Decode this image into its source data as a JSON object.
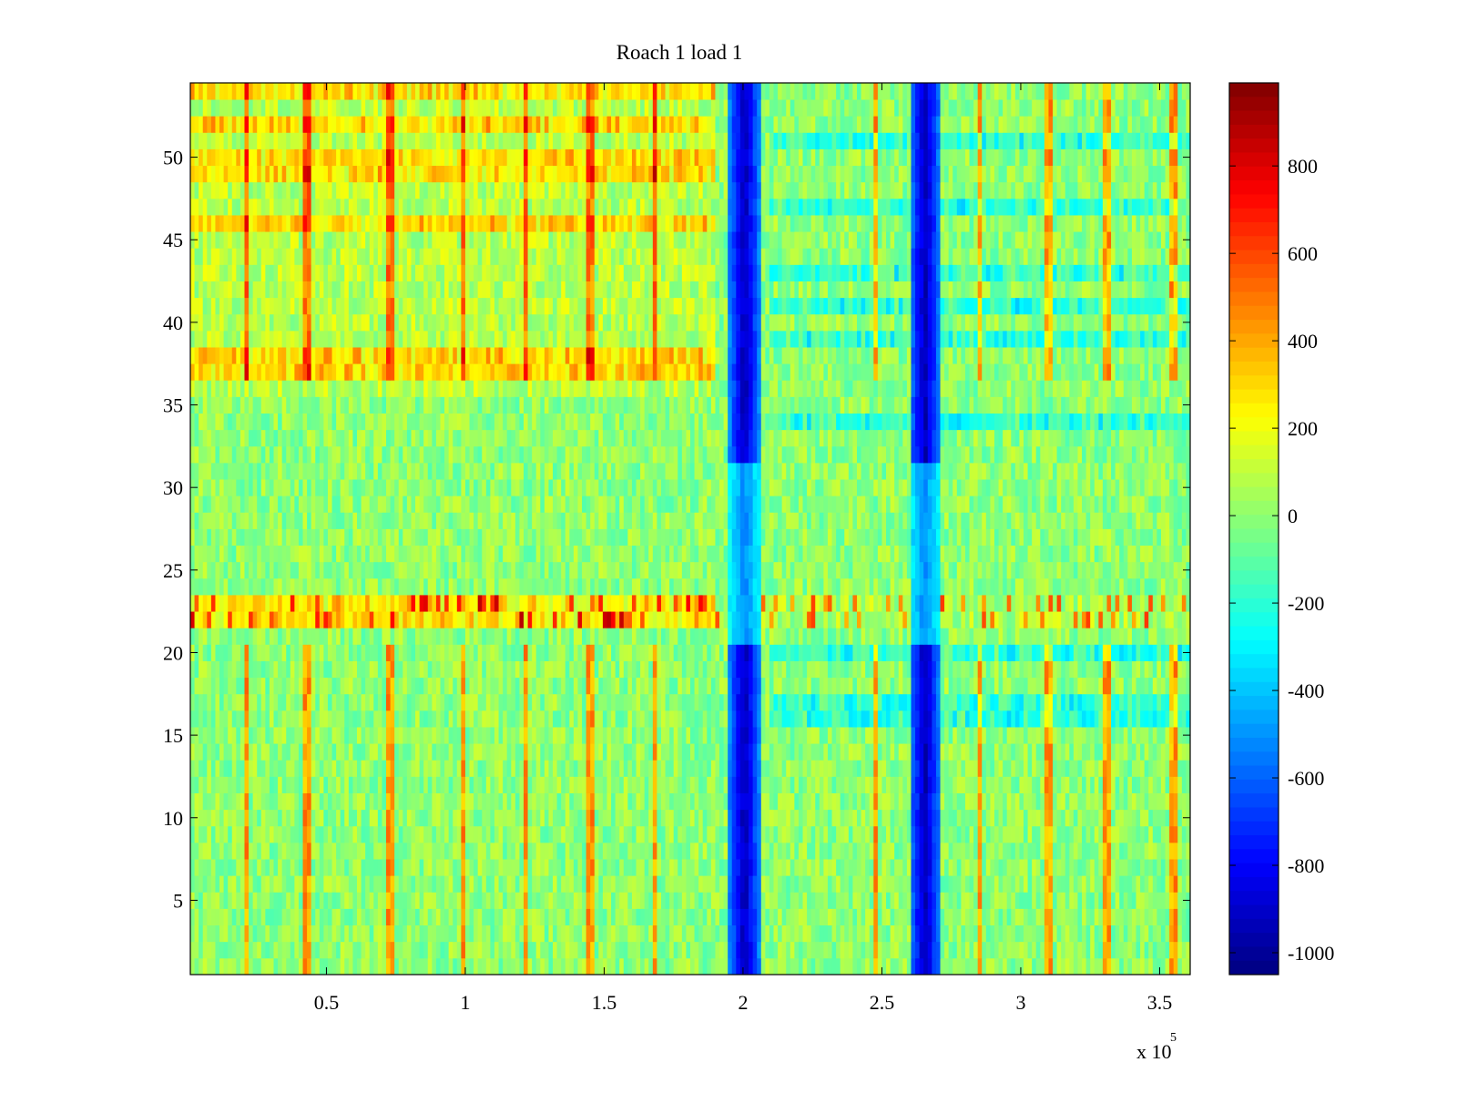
{
  "chart_data": {
    "type": "heatmap",
    "title": "Roach 1 load 1",
    "xlabel": "",
    "ylabel": "",
    "colormap": "jet",
    "x_multiplier_label": "x 10",
    "x_multiplier_exponent": "5",
    "xlim": [
      1000,
      361000
    ],
    "ylim": [
      0.5,
      54.5
    ],
    "xticks": [
      50000,
      100000,
      150000,
      200000,
      250000,
      300000,
      350000
    ],
    "xtick_labels": [
      "0.5",
      "1",
      "1.5",
      "2",
      "2.5",
      "3",
      "3.5"
    ],
    "yticks": [
      5,
      10,
      15,
      20,
      25,
      30,
      35,
      40,
      45,
      50
    ],
    "ytick_labels": [
      "5",
      "10",
      "15",
      "20",
      "25",
      "30",
      "35",
      "40",
      "45",
      "50"
    ],
    "clim": [
      -1050,
      990
    ],
    "colorbar_ticks": [
      800,
      600,
      400,
      200,
      0,
      -200,
      -400,
      -600,
      -800,
      -1000
    ],
    "colorbar_tick_labels": [
      "800",
      "600",
      "400",
      "200",
      "0",
      "-200",
      "-400",
      "-600",
      "-800",
      "-1000"
    ],
    "rows": 54,
    "base_level": 0,
    "blue_bands": [
      {
        "x_start": 195000,
        "x_end": 206000,
        "value": -950
      },
      {
        "x_start": 260000,
        "x_end": 271000,
        "value": -950
      }
    ],
    "periodic_spike_x": [
      21000,
      43000,
      73000,
      99000,
      122000,
      145000,
      168000,
      248000,
      285000,
      310000,
      331000,
      355000
    ],
    "hot_rows": [
      22,
      23,
      37,
      38,
      46,
      49,
      50,
      52,
      54
    ],
    "cold_rows": [
      34,
      39,
      41,
      43,
      47,
      51,
      20,
      16,
      17
    ],
    "grid": false,
    "legend": "none"
  }
}
